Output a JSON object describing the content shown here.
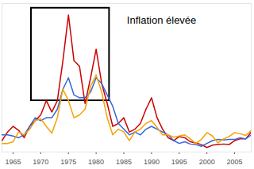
{
  "chart_data": {
    "type": "line",
    "x": [
      1963,
      1964,
      1965,
      1966,
      1967,
      1968,
      1969,
      1970,
      1971,
      1972,
      1973,
      1974,
      1975,
      1976,
      1977,
      1978,
      1979,
      1980,
      1981,
      1982,
      1983,
      1984,
      1985,
      1986,
      1987,
      1988,
      1989,
      1990,
      1991,
      1992,
      1993,
      1994,
      1995,
      1996,
      1997,
      1998,
      1999,
      2000,
      2001,
      2002,
      2003,
      2004,
      2005,
      2006,
      2007,
      2008
    ],
    "series": [
      {
        "color": "#cc0000",
        "values": [
          2,
          3.5,
          4.5,
          3.8,
          2.5,
          4.5,
          5.5,
          6.5,
          9,
          7,
          9,
          16,
          24,
          16,
          15,
          8.5,
          13,
          18,
          12,
          8.5,
          4.5,
          5,
          6,
          3.5,
          4,
          5,
          7.5,
          9.5,
          6,
          4,
          2.5,
          2,
          2.7,
          2.5,
          1.8,
          1.6,
          1.3,
          0.8,
          1.2,
          1.3,
          1.4,
          1.3,
          2,
          2.3,
          2.3,
          3.5
        ]
      },
      {
        "color": "#3366dd",
        "values": [
          3,
          3,
          2.8,
          2.5,
          3,
          4.5,
          6,
          5.5,
          6,
          6,
          7.5,
          11,
          13,
          10,
          9.5,
          9.5,
          10.5,
          13,
          12,
          10,
          8,
          5,
          4,
          3,
          3.5,
          3,
          4,
          4.5,
          4,
          3.5,
          3,
          2,
          1.5,
          1.8,
          1.4,
          1.3,
          1,
          1.5,
          2,
          2.2,
          2.1,
          2.2,
          2.2,
          2.5,
          2.3,
          3
        ]
      },
      {
        "color": "#f4a300",
        "values": [
          1.5,
          1.5,
          1.8,
          3.5,
          3,
          4,
          5.5,
          5.8,
          4.5,
          3.3,
          6,
          11,
          9,
          6,
          6.5,
          7.5,
          11.5,
          13.5,
          10.5,
          6,
          3,
          4,
          3.5,
          2,
          3.5,
          4,
          5,
          5.5,
          4.3,
          3,
          3,
          2.6,
          2.8,
          3,
          2.3,
          1.5,
          2.2,
          3.4,
          2.8,
          1.6,
          2.3,
          2.7,
          3.4,
          3.2,
          2.9,
          3.8
        ]
      }
    ],
    "xlim": [
      1963,
      2008
    ],
    "xticks": [
      1965,
      1970,
      1975,
      1980,
      1985,
      1990,
      1995,
      2000,
      2005
    ],
    "ylim": [
      0,
      26
    ],
    "tick_labels": "x",
    "grid": false,
    "annotations": [
      {
        "text": "Inflation élevée",
        "x": [
          1968.3,
          1982.4
        ],
        "y": [
          9,
          25.2
        ]
      }
    ]
  }
}
